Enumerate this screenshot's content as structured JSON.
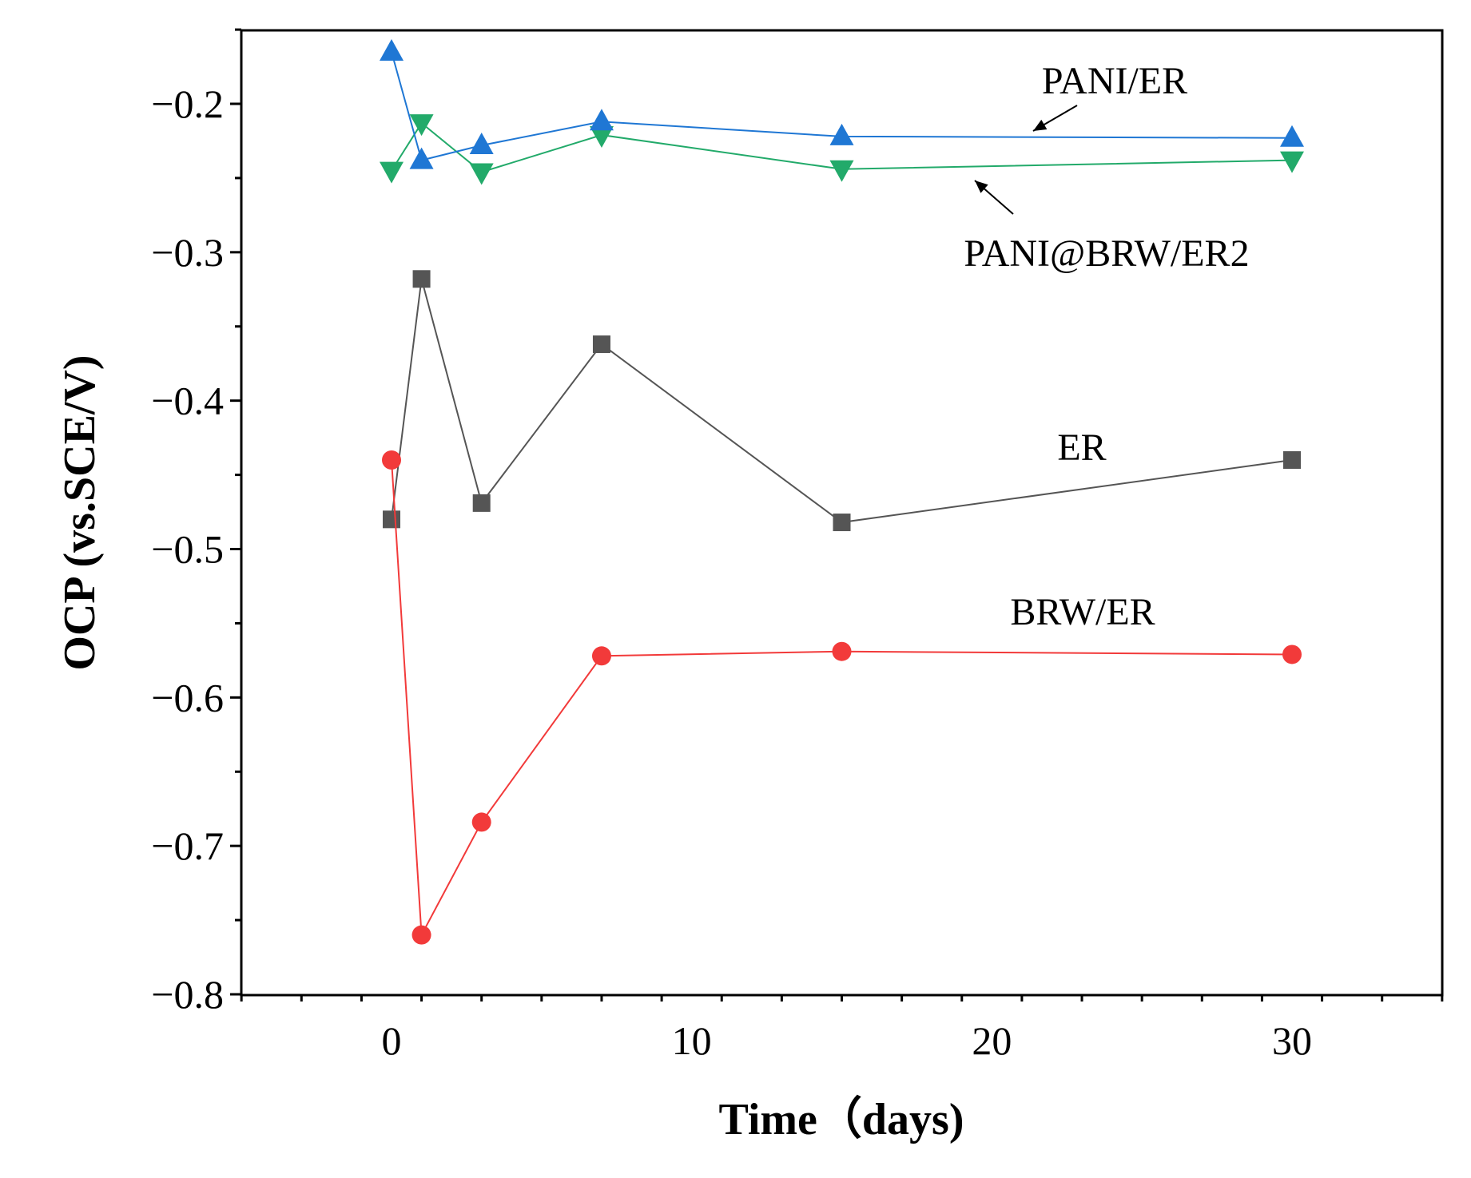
{
  "chart_data": {
    "type": "line",
    "title": "",
    "xlabel": "Time（days)",
    "ylabel": "OCP (vs.SCE/V)",
    "xlim": [
      -5,
      35
    ],
    "ylim": [
      -0.8,
      -0.15
    ],
    "x_ticks": [
      0,
      10,
      20,
      30
    ],
    "x_tick_labels": [
      "0",
      "10",
      "20",
      "30"
    ],
    "y_ticks": [
      -0.2,
      -0.3,
      -0.4,
      -0.5,
      -0.6,
      -0.7,
      -0.8
    ],
    "y_tick_labels": [
      "−0.2",
      "−0.3",
      "−0.4",
      "−0.5",
      "−0.6",
      "−0.7",
      "−0.8"
    ],
    "grid": false,
    "legend": "none (inline labels)",
    "series": [
      {
        "name": "PANI/ER",
        "label": "PANI/ER",
        "color": "#1f77d4",
        "marker": "triangle-up",
        "x": [
          0,
          1,
          3,
          7,
          15,
          30
        ],
        "y": [
          -0.165,
          -0.238,
          -0.228,
          -0.212,
          -0.222,
          -0.223
        ],
        "arrow": true
      },
      {
        "name": "PANI@BRW/ER2",
        "label": "PANI@BRW/ER2",
        "color": "#22aa6a",
        "marker": "triangle-down",
        "x": [
          0,
          1,
          3,
          7,
          15,
          30
        ],
        "y": [
          -0.245,
          -0.213,
          -0.246,
          -0.221,
          -0.244,
          -0.238
        ],
        "arrow": true
      },
      {
        "name": "ER",
        "label": "ER",
        "color": "#555555",
        "marker": "square",
        "x": [
          0,
          1,
          3,
          7,
          15,
          30
        ],
        "y": [
          -0.48,
          -0.318,
          -0.469,
          -0.362,
          -0.482,
          -0.44
        ],
        "arrow": false
      },
      {
        "name": "BRW/ER",
        "label": "BRW/ER",
        "color": "#f23a3a",
        "marker": "circle",
        "x": [
          0,
          1,
          3,
          7,
          15,
          30
        ],
        "y": [
          -0.44,
          -0.76,
          -0.684,
          -0.572,
          -0.569,
          -0.571
        ],
        "arrow": false
      }
    ]
  }
}
